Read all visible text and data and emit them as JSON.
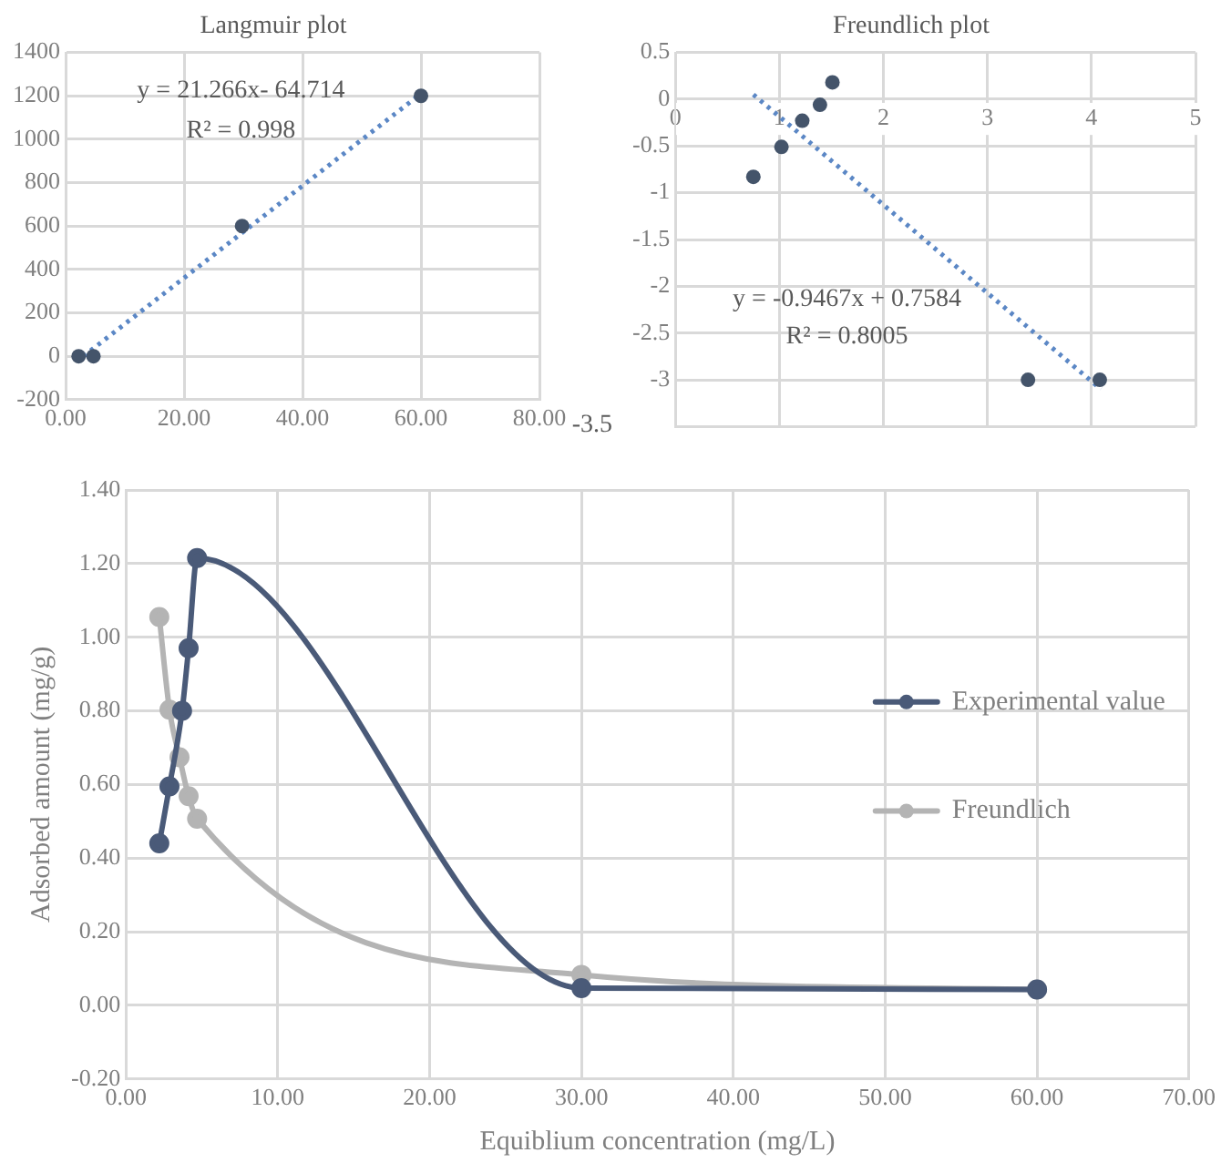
{
  "chart_data": [
    {
      "type": "scatter",
      "title": "Langmuir plot",
      "grid": true,
      "xlim": [
        0,
        80
      ],
      "xticks": [
        {
          "value": 0,
          "label": "0.00"
        },
        {
          "value": 20,
          "label": "20.00"
        },
        {
          "value": 40,
          "label": "40.00"
        },
        {
          "value": 60,
          "label": "60.00"
        },
        {
          "value": 80,
          "label": "80.00"
        }
      ],
      "ylim": [
        -200,
        1400
      ],
      "yticks": [
        -200,
        0,
        200,
        400,
        600,
        800,
        1000,
        1200,
        1400
      ],
      "series": [
        {
          "type": "scatter",
          "color": "#44546a",
          "marker": "circle",
          "x": [
            2.2,
            4.7,
            29.8,
            60
          ],
          "values": [
            0,
            0,
            600,
            1200
          ]
        },
        {
          "type": "line",
          "color": "#5b87c5",
          "marker": "none",
          "line_style": "dotted",
          "x": [
            3,
            60
          ],
          "values": [
            0,
            1210
          ]
        }
      ],
      "annotations": [
        "y = 21.266x- 64.714",
        "R² = 0.998",
        "-3.5"
      ]
    },
    {
      "type": "scatter",
      "title": "Freundlich plot",
      "grid": true,
      "xlim": [
        0,
        5
      ],
      "xticks": [
        0,
        1,
        2,
        3,
        4,
        5
      ],
      "ylim": [
        -3.5,
        0.5
      ],
      "yticks": [
        {
          "value": -3.5,
          "label": null
        },
        -3,
        -2.5,
        -2,
        -1.5,
        -1,
        -0.5,
        0,
        0.5
      ],
      "series": [
        {
          "type": "scatter",
          "color": "#44546a",
          "marker": "circle",
          "x": [
            0.75,
            1.02,
            1.22,
            1.39,
            1.51,
            3.39,
            4.08
          ],
          "values": [
            -0.83,
            -0.51,
            -0.23,
            -0.06,
            0.18,
            -3.0,
            -3.0
          ]
        },
        {
          "type": "line",
          "color": "#5b87c5",
          "marker": "none",
          "line_style": "dotted",
          "x": [
            0.75,
            4.09
          ],
          "values": [
            0.05,
            -3.1
          ]
        }
      ],
      "annotations": [
        "y = -0.9467x + 0.7584",
        "R² = 0.8005"
      ]
    },
    {
      "type": "line",
      "xlabel": "Equiblium concentration (mg/L)",
      "ylabel": "Adsorbed amount (mg/g)",
      "grid": true,
      "legend": "right",
      "marker": "circle",
      "xlim": [
        0,
        70
      ],
      "xticks": [
        {
          "value": 0,
          "label": "0.00"
        },
        {
          "value": 10,
          "label": "10.00"
        },
        {
          "value": 20,
          "label": "20.00"
        },
        {
          "value": 30,
          "label": "30.00"
        },
        {
          "value": 40,
          "label": "40.00"
        },
        {
          "value": 50,
          "label": "50.00"
        },
        {
          "value": 60,
          "label": "60.00"
        },
        {
          "value": 70,
          "label": "70.00"
        }
      ],
      "ylim": [
        -0.2,
        1.4
      ],
      "yticks": [
        {
          "value": -0.2,
          "label": "-0.20"
        },
        {
          "value": 0,
          "label": "0.00"
        },
        {
          "value": 0.2,
          "label": "0.20"
        },
        {
          "value": 0.4,
          "label": "0.40"
        },
        {
          "value": 0.6,
          "label": "0.60"
        },
        {
          "value": 0.8,
          "label": "0.80"
        },
        {
          "value": 1,
          "label": "1.00"
        },
        {
          "value": 1.2,
          "label": "1.20"
        },
        {
          "value": 1.4,
          "label": "1.40"
        }
      ],
      "series": [
        {
          "name": "Experimental value",
          "color": "#4a5a78",
          "x": [
            2.2,
            2.87,
            3.7,
            4.13,
            4.69,
            30.0,
            60.0
          ],
          "values": [
            0.44,
            0.595,
            0.8,
            0.97,
            1.215,
            0.047,
            0.043
          ]
        },
        {
          "name": "Freundlich",
          "color": "#b4b4b4",
          "x": [
            2.2,
            2.87,
            3.53,
            4.13,
            4.69,
            30.0,
            60.0
          ],
          "values": [
            1.055,
            0.803,
            0.674,
            0.568,
            0.507,
            0.083,
            0.043
          ]
        }
      ]
    }
  ]
}
